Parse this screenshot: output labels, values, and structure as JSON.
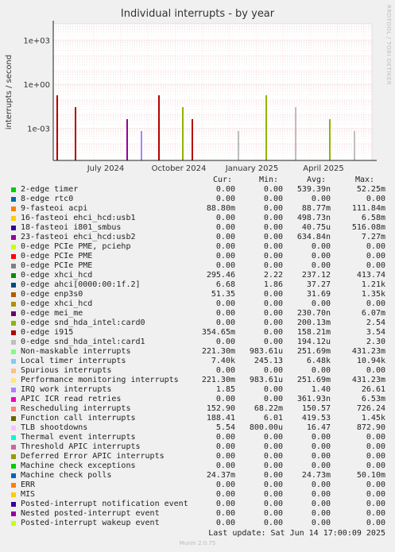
{
  "title": "Individual interrupts - by year",
  "side_label": "RRDTOOL / TOBI OETIKER",
  "footer": {
    "last_update": "Last update: Sat Jun 14 17:00:09 2025",
    "version": "Munin 2.0.75"
  },
  "columns": {
    "cur": "Cur:",
    "min": "Min:",
    "avg": "Avg:",
    "max": "Max:"
  },
  "chart_data": {
    "type": "line",
    "title": "Individual interrupts - by year",
    "ylabel": "interrupts / second",
    "yscale": "log",
    "y_ticks": [
      "1e+03",
      "1e+00",
      "1e-03"
    ],
    "x_ticks": [
      "July 2024",
      "October 2024",
      "January 2025",
      "April 2025"
    ],
    "grid": true,
    "series": [
      {
        "name": "2-edge timer",
        "color": "#00cc00",
        "cur": "0.00",
        "min": "0.00",
        "avg": "539.39n",
        "max": "52.25m"
      },
      {
        "name": "8-edge rtc0",
        "color": "#0066b3",
        "cur": "0.00",
        "min": "0.00",
        "avg": "0.00",
        "max": "0.00"
      },
      {
        "name": "9-fasteoi acpi",
        "color": "#ff8000",
        "cur": "88.80m",
        "min": "0.00",
        "avg": "88.77m",
        "max": "111.84m"
      },
      {
        "name": "16-fasteoi ehci_hcd:usb1",
        "color": "#ffcc00",
        "cur": "0.00",
        "min": "0.00",
        "avg": "498.73n",
        "max": "6.58m"
      },
      {
        "name": "18-fasteoi i801_smbus",
        "color": "#330099",
        "cur": "0.00",
        "min": "0.00",
        "avg": "40.75u",
        "max": "516.08m"
      },
      {
        "name": "23-fasteoi ehci_hcd:usb2",
        "color": "#990099",
        "cur": "0.00",
        "min": "0.00",
        "avg": "634.84n",
        "max": "7.27m"
      },
      {
        "name": "0-edge PCIe PME, pciehp",
        "color": "#ccff00",
        "cur": "0.00",
        "min": "0.00",
        "avg": "0.00",
        "max": "0.00"
      },
      {
        "name": "0-edge PCIe PME",
        "color": "#ff0000",
        "cur": "0.00",
        "min": "0.00",
        "avg": "0.00",
        "max": "0.00"
      },
      {
        "name": "0-edge PCIe PME",
        "color": "#808080",
        "cur": "0.00",
        "min": "0.00",
        "avg": "0.00",
        "max": "0.00"
      },
      {
        "name": "0-edge xhci_hcd",
        "color": "#008f00",
        "cur": "295.46",
        "min": "2.22",
        "avg": "237.12",
        "max": "413.74"
      },
      {
        "name": "0-edge ahci[0000:00:1f.2]",
        "color": "#00487d",
        "cur": "6.68",
        "min": "1.86",
        "avg": "37.27",
        "max": "1.21k"
      },
      {
        "name": "0-edge enp3s0",
        "color": "#b35a00",
        "cur": "51.35",
        "min": "0.00",
        "avg": "31.69",
        "max": "1.35k"
      },
      {
        "name": "0-edge xhci_hcd",
        "color": "#b38f00",
        "cur": "0.00",
        "min": "0.00",
        "avg": "0.00",
        "max": "0.00"
      },
      {
        "name": "0-edge mei_me",
        "color": "#6b006b",
        "cur": "0.00",
        "min": "0.00",
        "avg": "230.70n",
        "max": "6.07m"
      },
      {
        "name": "0-edge snd_hda_intel:card0",
        "color": "#8fb300",
        "cur": "0.00",
        "min": "0.00",
        "avg": "200.13m",
        "max": "2.54"
      },
      {
        "name": "0-edge i915",
        "color": "#b30000",
        "cur": "354.65m",
        "min": "0.00",
        "avg": "158.21m",
        "max": "3.54"
      },
      {
        "name": "0-edge snd_hda_intel:card1",
        "color": "#bebebe",
        "cur": "0.00",
        "min": "0.00",
        "avg": "194.12u",
        "max": "2.30"
      },
      {
        "name": "Non-maskable interrupts",
        "color": "#80ff80",
        "cur": "221.30m",
        "min": "983.61u",
        "avg": "251.69m",
        "max": "431.23m"
      },
      {
        "name": "Local timer interrupts",
        "color": "#80c9ff",
        "cur": "7.40k",
        "min": "245.13",
        "avg": "6.48k",
        "max": "10.94k"
      },
      {
        "name": "Spurious interrupts",
        "color": "#ffc080",
        "cur": "0.00",
        "min": "0.00",
        "avg": "0.00",
        "max": "0.00"
      },
      {
        "name": "Performance monitoring interrupts",
        "color": "#ffe680",
        "cur": "221.30m",
        "min": "983.61u",
        "avg": "251.69m",
        "max": "431.23m"
      },
      {
        "name": "IRQ work interrupts",
        "color": "#aa80ff",
        "cur": "1.85",
        "min": "0.00",
        "avg": "1.40",
        "max": "26.61"
      },
      {
        "name": "APIC ICR read retries",
        "color": "#ee00cc",
        "cur": "0.00",
        "min": "0.00",
        "avg": "361.93n",
        "max": "6.53m"
      },
      {
        "name": "Rescheduling interrupts",
        "color": "#ff8080",
        "cur": "152.90",
        "min": "68.22m",
        "avg": "150.57",
        "max": "726.24"
      },
      {
        "name": "Function call interrupts",
        "color": "#666600",
        "cur": "188.41",
        "min": "6.01",
        "avg": "419.53",
        "max": "1.45k"
      },
      {
        "name": "TLB shootdowns",
        "color": "#ffbfff",
        "cur": "5.54",
        "min": "800.00u",
        "avg": "16.47",
        "max": "872.90"
      },
      {
        "name": "Thermal event interrupts",
        "color": "#00ffcc",
        "cur": "0.00",
        "min": "0.00",
        "avg": "0.00",
        "max": "0.00"
      },
      {
        "name": "Threshold APIC interrupts",
        "color": "#cc6699",
        "cur": "0.00",
        "min": "0.00",
        "avg": "0.00",
        "max": "0.00"
      },
      {
        "name": "Deferred Error APIC interrupts",
        "color": "#999900",
        "cur": "0.00",
        "min": "0.00",
        "avg": "0.00",
        "max": "0.00"
      },
      {
        "name": "Machine check exceptions",
        "color": "#00cc00",
        "cur": "0.00",
        "min": "0.00",
        "avg": "0.00",
        "max": "0.00"
      },
      {
        "name": "Machine check polls",
        "color": "#0066b3",
        "cur": "24.37m",
        "min": "0.00",
        "avg": "24.73m",
        "max": "50.10m"
      },
      {
        "name": "ERR",
        "color": "#ff8000",
        "cur": "0.00",
        "min": "0.00",
        "avg": "0.00",
        "max": "0.00"
      },
      {
        "name": "MIS",
        "color": "#ffcc00",
        "cur": "0.00",
        "min": "0.00",
        "avg": "0.00",
        "max": "0.00"
      },
      {
        "name": "Posted-interrupt notification event",
        "color": "#330099",
        "cur": "0.00",
        "min": "0.00",
        "avg": "0.00",
        "max": "0.00"
      },
      {
        "name": "Nested posted-interrupt event",
        "color": "#990099",
        "cur": "0.00",
        "min": "0.00",
        "avg": "0.00",
        "max": "0.00"
      },
      {
        "name": "Posted-interrupt wakeup event",
        "color": "#ccff00",
        "cur": "0.00",
        "min": "0.00",
        "avg": "0.00",
        "max": "0.00"
      }
    ]
  }
}
